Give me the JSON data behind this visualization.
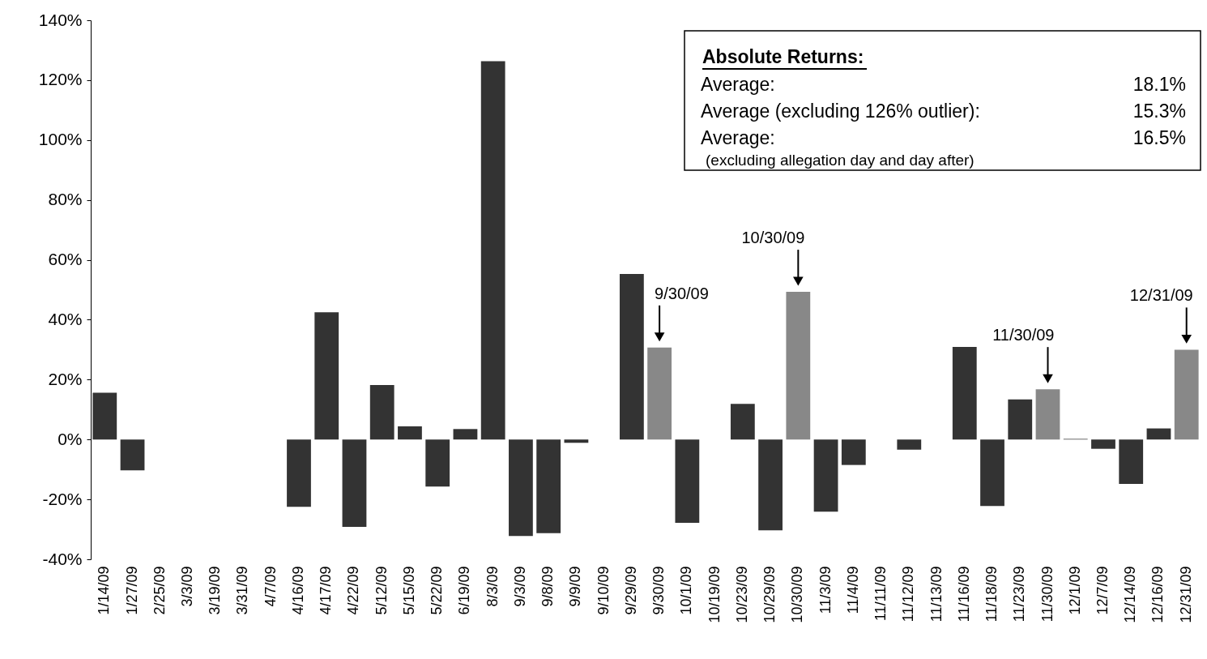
{
  "chart_data": {
    "type": "bar",
    "categories": [
      "1/14/09",
      "1/27/09",
      "2/25/09",
      "3/3/09",
      "3/19/09",
      "3/31/09",
      "4/7/09",
      "4/16/09",
      "4/17/09",
      "4/22/09",
      "5/12/09",
      "5/15/09",
      "5/22/09",
      "6/19/09",
      "8/3/09",
      "9/3/09",
      "9/8/09",
      "9/9/09",
      "9/10/09",
      "9/29/09",
      "9/30/09",
      "10/1/09",
      "10/19/09",
      "10/23/09",
      "10/29/09",
      "10/30/09",
      "11/3/09",
      "11/4/09",
      "11/11/09",
      "11/12/09",
      "11/13/09",
      "11/16/09",
      "11/18/09",
      "11/23/09",
      "11/30/09",
      "12/1/09",
      "12/7/09",
      "12/14/09",
      "12/16/09",
      "12/31/09"
    ],
    "values": [
      15.6,
      -10.3,
      0,
      0,
      0,
      0,
      0,
      -22.5,
      42.5,
      -29.2,
      18.2,
      4.4,
      -15.7,
      3.5,
      126.3,
      -32.2,
      -31.3,
      -1.1,
      0,
      55.3,
      30.7,
      -27.8,
      0,
      11.9,
      -30.3,
      49.3,
      -24.1,
      -8.5,
      0,
      -3.4,
      0,
      30.9,
      -22.2,
      13.4,
      16.8,
      0.2,
      -3.1,
      -14.8,
      3.7,
      30.0
    ],
    "colors": [
      "#333333",
      "#333333",
      "#333333",
      "#333333",
      "#333333",
      "#333333",
      "#333333",
      "#333333",
      "#333333",
      "#333333",
      "#333333",
      "#333333",
      "#333333",
      "#333333",
      "#333333",
      "#333333",
      "#333333",
      "#333333",
      "#333333",
      "#333333",
      "#888888",
      "#333333",
      "#333333",
      "#333333",
      "#333333",
      "#888888",
      "#333333",
      "#333333",
      "#333333",
      "#333333",
      "#333333",
      "#333333",
      "#333333",
      "#333333",
      "#888888",
      "#333333",
      "#333333",
      "#333333",
      "#333333",
      "#888888"
    ],
    "ylim": [
      -40,
      140
    ],
    "yticks": [
      {
        "value": -40,
        "label": "-40%"
      },
      {
        "value": -20,
        "label": "-20%"
      },
      {
        "value": 0,
        "label": "0%"
      },
      {
        "value": 20,
        "label": "20%"
      },
      {
        "value": 40,
        "label": "40%"
      },
      {
        "value": 60,
        "label": "60%"
      },
      {
        "value": 80,
        "label": "80%"
      },
      {
        "value": 100,
        "label": "100%"
      },
      {
        "value": 120,
        "label": "120%"
      },
      {
        "value": 140,
        "label": "140%"
      }
    ],
    "grid": false,
    "annotations": [
      {
        "text": "9/30/09",
        "x": "9/30/09",
        "y": 30.7
      },
      {
        "text": "10/30/09",
        "x": "10/30/09",
        "y": 49.3
      },
      {
        "text": "11/30/09",
        "x": "11/30/09",
        "y": 16.8
      },
      {
        "text": "12/31/09",
        "x": "12/31/09",
        "y": 30.0
      },
      "Absolute Returns:",
      "Average:",
      "18.1%",
      "Average (excluding 126% outlier):",
      "15.3%",
      "Average:",
      "16.5%",
      "(excluding allegation day and day after)"
    ]
  }
}
